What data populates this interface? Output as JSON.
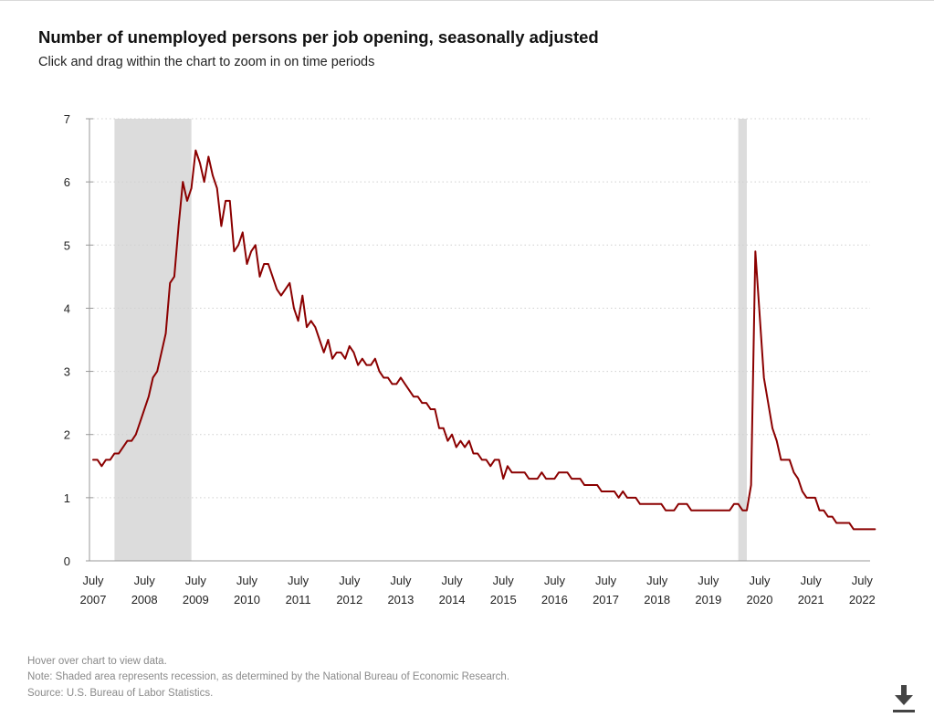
{
  "header": {
    "title": "Number of unemployed persons per job opening, seasonally adjusted",
    "subtitle": "Click and drag within the chart to zoom in on time periods"
  },
  "notes": {
    "hover": "Hover over chart to view data.",
    "note": "Note: Shaded area represents recession, as determined by the National Bureau of Economic Research.",
    "source": "Source: U.S. Bureau of Labor Statistics."
  },
  "download": {
    "icon": "download-icon"
  },
  "colors": {
    "line": "#8b0000",
    "recession": "#dcdcdc",
    "grid": "#d0d0d0",
    "axis": "#999999",
    "text": "#222222"
  },
  "chart_data": {
    "type": "line",
    "title": "Number of unemployed persons per job opening, seasonally adjusted",
    "xlabel": "",
    "ylabel": "",
    "start": "2007-07",
    "end": "2022-08",
    "ylim": [
      0,
      7
    ],
    "yticks": [
      0,
      1,
      2,
      3,
      4,
      5,
      6,
      7
    ],
    "grid": true,
    "xticks": [
      {
        "month": "July",
        "year": "2007"
      },
      {
        "month": "July",
        "year": "2008"
      },
      {
        "month": "July",
        "year": "2009"
      },
      {
        "month": "July",
        "year": "2010"
      },
      {
        "month": "July",
        "year": "2011"
      },
      {
        "month": "July",
        "year": "2012"
      },
      {
        "month": "July",
        "year": "2013"
      },
      {
        "month": "July",
        "year": "2014"
      },
      {
        "month": "July",
        "year": "2015"
      },
      {
        "month": "July",
        "year": "2016"
      },
      {
        "month": "July",
        "year": "2017"
      },
      {
        "month": "July",
        "year": "2018"
      },
      {
        "month": "July",
        "year": "2019"
      },
      {
        "month": "July",
        "year": "2020"
      },
      {
        "month": "July",
        "year": "2021"
      },
      {
        "month": "July",
        "year": "2022"
      }
    ],
    "recessions": [
      {
        "start": "2007-12",
        "end": "2009-06"
      },
      {
        "start": "2020-02",
        "end": "2020-04"
      }
    ],
    "series": [
      {
        "name": "Unemployed persons per job opening",
        "values": [
          1.6,
          1.6,
          1.5,
          1.6,
          1.6,
          1.7,
          1.7,
          1.8,
          1.9,
          1.9,
          2.0,
          2.2,
          2.4,
          2.6,
          2.9,
          3.0,
          3.3,
          3.6,
          4.4,
          4.5,
          5.3,
          6.0,
          5.7,
          5.9,
          6.5,
          6.3,
          6.0,
          6.4,
          6.1,
          5.9,
          5.3,
          5.7,
          5.7,
          4.9,
          5.0,
          5.2,
          4.7,
          4.9,
          5.0,
          4.5,
          4.7,
          4.7,
          4.5,
          4.3,
          4.2,
          4.3,
          4.4,
          4.0,
          3.8,
          4.2,
          3.7,
          3.8,
          3.7,
          3.5,
          3.3,
          3.5,
          3.2,
          3.3,
          3.3,
          3.2,
          3.4,
          3.3,
          3.1,
          3.2,
          3.1,
          3.1,
          3.2,
          3.0,
          2.9,
          2.9,
          2.8,
          2.8,
          2.9,
          2.8,
          2.7,
          2.6,
          2.6,
          2.5,
          2.5,
          2.4,
          2.4,
          2.1,
          2.1,
          1.9,
          2.0,
          1.8,
          1.9,
          1.8,
          1.9,
          1.7,
          1.7,
          1.6,
          1.6,
          1.5,
          1.6,
          1.6,
          1.3,
          1.5,
          1.4,
          1.4,
          1.4,
          1.4,
          1.3,
          1.3,
          1.3,
          1.4,
          1.3,
          1.3,
          1.3,
          1.4,
          1.4,
          1.4,
          1.3,
          1.3,
          1.3,
          1.2,
          1.2,
          1.2,
          1.2,
          1.1,
          1.1,
          1.1,
          1.1,
          1.0,
          1.1,
          1.0,
          1.0,
          1.0,
          0.9,
          0.9,
          0.9,
          0.9,
          0.9,
          0.9,
          0.8,
          0.8,
          0.8,
          0.9,
          0.9,
          0.9,
          0.8,
          0.8,
          0.8,
          0.8,
          0.8,
          0.8,
          0.8,
          0.8,
          0.8,
          0.8,
          0.9,
          0.9,
          0.8,
          0.8,
          1.2,
          4.9,
          3.9,
          2.9,
          2.5,
          2.1,
          1.9,
          1.6,
          1.6,
          1.6,
          1.4,
          1.3,
          1.1,
          1.0,
          1.0,
          1.0,
          0.8,
          0.8,
          0.7,
          0.7,
          0.6,
          0.6,
          0.6,
          0.6,
          0.5,
          0.5,
          0.5,
          0.5,
          0.5,
          0.5
        ]
      }
    ]
  }
}
